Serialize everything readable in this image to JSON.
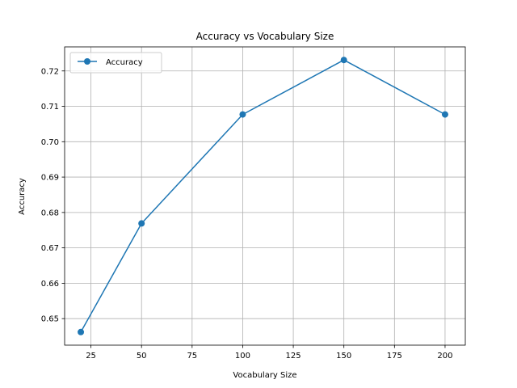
{
  "chart_data": {
    "type": "line",
    "title": "Accuracy vs Vocabulary Size",
    "xlabel": "Vocabulary Size",
    "ylabel": "Accuracy",
    "xlim": [
      12,
      210
    ],
    "ylim": [
      0.6425,
      0.7268
    ],
    "xticks": [
      25,
      50,
      75,
      100,
      125,
      150,
      175,
      200
    ],
    "yticks": [
      0.65,
      0.66,
      0.67,
      0.68,
      0.69,
      0.7,
      0.71,
      0.72
    ],
    "ytick_labels": [
      "0.65",
      "0.66",
      "0.67",
      "0.68",
      "0.69",
      "0.70",
      "0.71",
      "0.72"
    ],
    "grid": true,
    "legend_position": "upper-left",
    "series": [
      {
        "name": "Accuracy",
        "color": "#1f77b4",
        "marker": "circle",
        "x": [
          20,
          50,
          100,
          150,
          200
        ],
        "y": [
          0.6462,
          0.6769,
          0.7077,
          0.7231,
          0.7077
        ]
      }
    ]
  }
}
